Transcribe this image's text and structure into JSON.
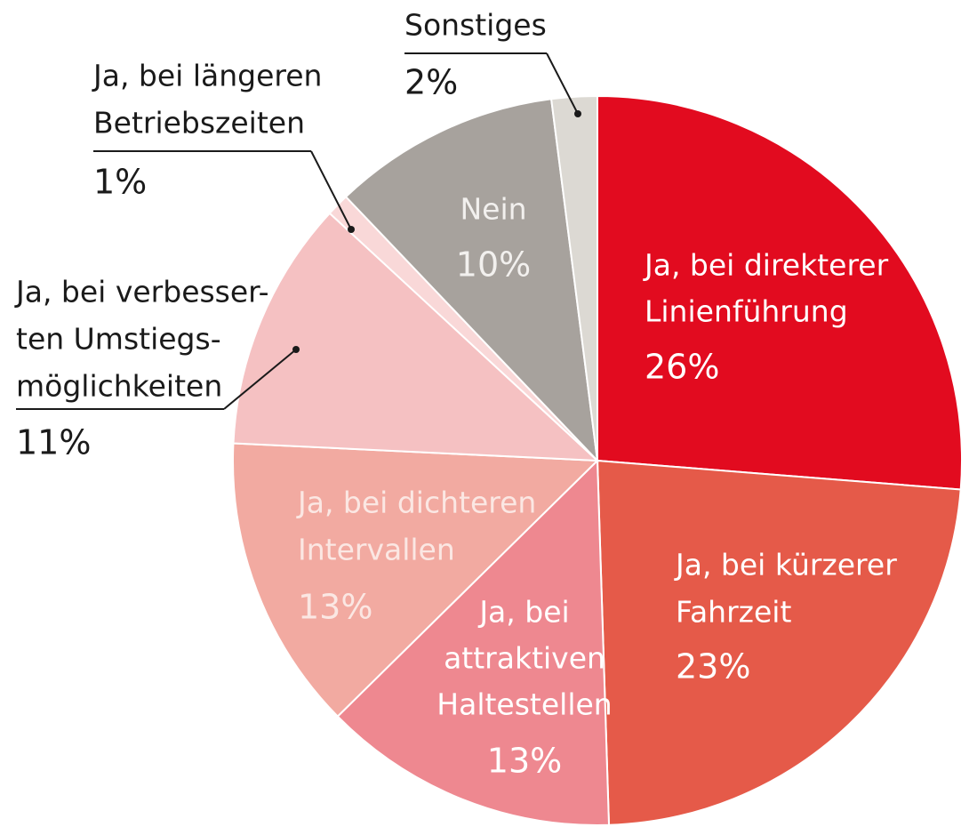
{
  "chart_data": {
    "type": "pie",
    "categories": [
      [
        "Ja, bei direkterer",
        "Linienführung"
      ],
      [
        "Ja, bei kürzerer",
        "Fahrzeit"
      ],
      [
        "Ja, bei",
        "attraktiven",
        "Haltestellen"
      ],
      [
        "Ja, bei dichteren",
        "Intervallen"
      ],
      [
        "Ja, bei verbesser-",
        "ten Umstiegs-",
        "möglichkeiten"
      ],
      [
        "Ja, bei längeren",
        "Betriebszeiten"
      ],
      [
        "Nein"
      ],
      [
        "Sonstiges"
      ]
    ],
    "values": [
      26,
      23,
      13,
      13,
      11,
      1,
      10,
      2
    ],
    "value_labels": [
      "26%",
      "23%",
      "13%",
      "13%",
      "11%",
      "1%",
      "10%",
      "2%"
    ],
    "colors": [
      "#e20b1f",
      "#e55a49",
      "#ee8890",
      "#f2aaa1",
      "#f5c1c2",
      "#f9d8d8",
      "#a7a29d",
      "#dcd9d3"
    ]
  }
}
